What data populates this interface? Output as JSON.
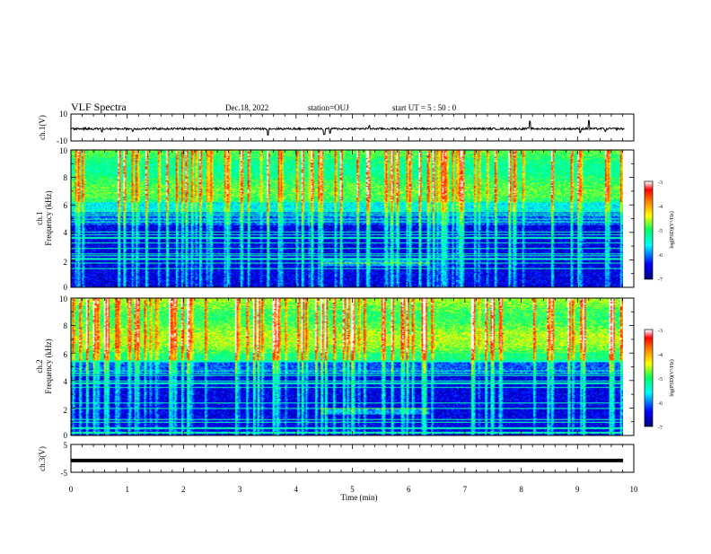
{
  "header": {
    "title": "VLF Spectra",
    "date": "Dec.18, 2022",
    "station": "station=OUJ",
    "start": "start  UT =  5 : 50 : 0"
  },
  "chart_data": [
    {
      "type": "line",
      "name": "ch1-waveform",
      "ylabel": "ch.1(V)",
      "ylim": [
        -10,
        10
      ],
      "yticks": [
        "10",
        "-10"
      ],
      "baseline": -1,
      "spikes": [
        {
          "t": 0.55,
          "v": -3.5
        },
        {
          "t": 1.1,
          "v": -3.0
        },
        {
          "t": 3.5,
          "v": -6.0
        },
        {
          "t": 4.5,
          "v": -5.5
        },
        {
          "t": 4.6,
          "v": -4.5
        },
        {
          "t": 5.3,
          "v": 1.5
        },
        {
          "t": 8.15,
          "v": 5.0
        },
        {
          "t": 9.05,
          "v": -4.0
        },
        {
          "t": 9.2,
          "v": 5.5
        },
        {
          "t": 9.5,
          "v": -3.0
        }
      ]
    },
    {
      "type": "heatmap",
      "name": "ch1-spectrogram",
      "ylabel_lines": [
        "ch.1",
        "Frequency (kHz)"
      ],
      "ylim": [
        0,
        10
      ],
      "yticks": [
        "0",
        "2",
        "4",
        "6",
        "8",
        "10"
      ],
      "xlim": [
        0,
        9.83
      ],
      "colorbar": {
        "label": "log(PSD)(V²/Hz)",
        "ticks": [
          "-3",
          "-4",
          "-5",
          "-6",
          "-7"
        ],
        "range": [
          -7,
          -3
        ]
      }
    },
    {
      "type": "heatmap",
      "name": "ch2-spectrogram",
      "ylabel_lines": [
        "ch.2",
        "Frequency (kHz)"
      ],
      "ylim": [
        0,
        10
      ],
      "yticks": [
        "0",
        "2",
        "4",
        "6",
        "8",
        "10"
      ],
      "xlim": [
        0,
        9.83
      ],
      "colorbar": {
        "label": "log(PSD)(V²/Hz)",
        "ticks": [
          "-3",
          "-4",
          "-5",
          "-6",
          "-7"
        ],
        "range": [
          -7,
          -3
        ]
      }
    },
    {
      "type": "line",
      "name": "ch3-trace",
      "ylabel": "ch.3(V)",
      "ylim": [
        -5,
        5
      ],
      "yticks": [
        "5",
        "0",
        "-5"
      ],
      "value": -0.8
    }
  ],
  "xaxis": {
    "label": "Time (min)",
    "xlim": [
      0,
      10
    ],
    "ticks": [
      "0",
      "1",
      "2",
      "3",
      "4",
      "5",
      "6",
      "7",
      "8",
      "9",
      "10"
    ]
  },
  "colors": {
    "colormap": [
      "#00007f",
      "#0000ff",
      "#00ffff",
      "#00ff66",
      "#ffff00",
      "#ff7f00",
      "#ff0000",
      "#ffffff"
    ]
  }
}
